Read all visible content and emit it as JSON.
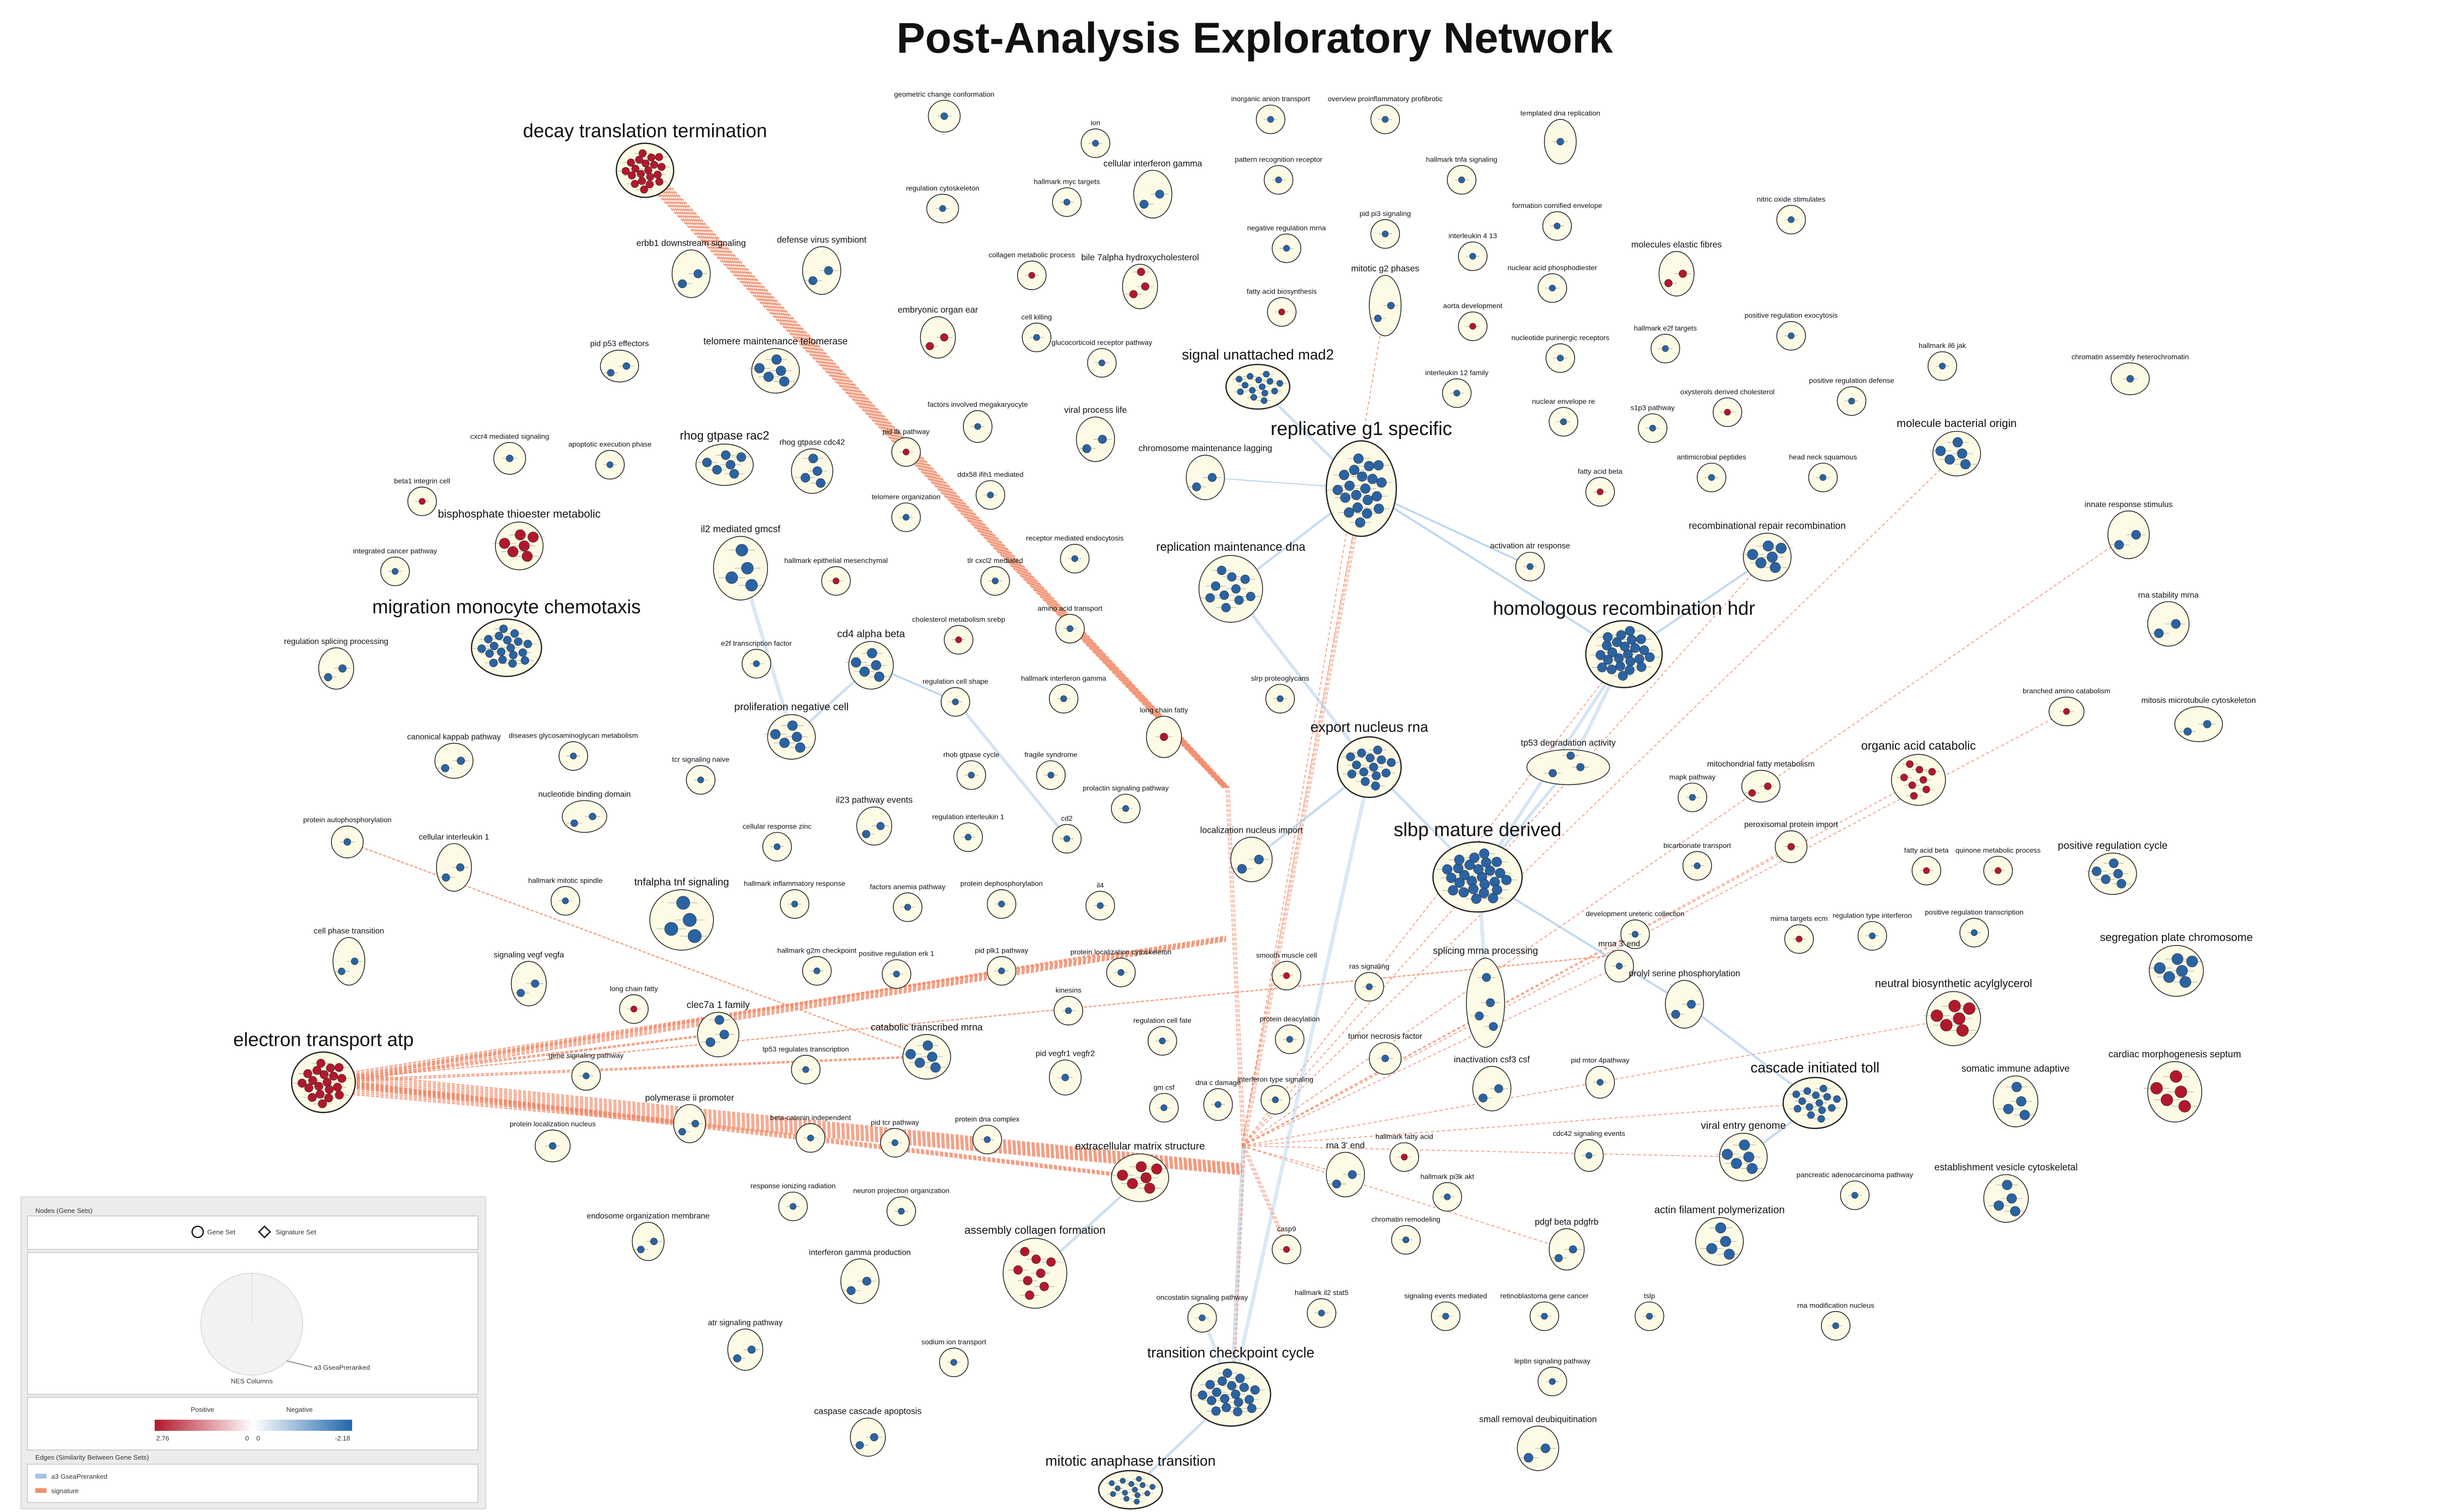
{
  "title": "Post-Analysis Exploratory Network",
  "nodes": [
    {
      "label": "decay translation termination",
      "color": "#b2182b"
    },
    {
      "label": "migration monocyte chemotaxis",
      "color": "#2a63a3"
    },
    {
      "label": "electron transport atp",
      "color": "#b2182b"
    },
    {
      "label": "replicative g1 specific",
      "color": "#2a63a3"
    },
    {
      "label": "homologous recombination hdr",
      "color": "#2a63a3"
    },
    {
      "label": "slbp mature derived",
      "color": "#2a63a3"
    },
    {
      "label": "signal unattached mad2",
      "color": "#2a63a3"
    },
    {
      "label": "export nucleus rna",
      "color": "#2a63a3"
    },
    {
      "label": "cascade initiated toll",
      "color": "#2a63a3"
    },
    {
      "label": "transition checkpoint cycle",
      "color": "#2a63a3"
    },
    {
      "label": "mitotic anaphase transition",
      "color": "#2a63a3"
    },
    {
      "label": "organic acid catabolic",
      "color": "#b2182b"
    },
    {
      "label": "molecule bacterial origin",
      "color": "#2a63a3"
    },
    {
      "label": "recombinational repair recombination",
      "color": "#2a63a3"
    },
    {
      "label": "replication maintenance dna",
      "color": "#2a63a3"
    },
    {
      "label": "rhog gtpase rac2",
      "color": "#2a63a3"
    },
    {
      "label": "rhog gtpase cdc42",
      "color": "#2a63a3"
    },
    {
      "label": "telomere maintenance telomerase",
      "color": "#2a63a3"
    },
    {
      "label": "il2 mediated gmcsf",
      "color": "#2a63a3"
    },
    {
      "label": "bisphosphate thioester metabolic",
      "color": "#b2182b"
    },
    {
      "label": "cd4 alpha beta",
      "color": "#2a63a3"
    },
    {
      "label": "proliferation negative cell",
      "color": "#2a63a3"
    },
    {
      "label": "tnfalpha tnf signaling",
      "color": "#2a63a3"
    },
    {
      "label": "catabolic transcribed mrna",
      "color": "#2a63a3"
    },
    {
      "label": "extracellular matrix structure",
      "color": "#b2182b"
    },
    {
      "label": "assembly collagen formation",
      "color": "#b2182b"
    },
    {
      "label": "neutral biosynthetic acylglycerol",
      "color": "#b2182b"
    },
    {
      "label": "segregation plate chromosome",
      "color": "#2a63a3"
    },
    {
      "label": "positive regulation cycle",
      "color": "#2a63a3"
    },
    {
      "label": "cardiac morphogenesis septum",
      "color": "#b2182b"
    },
    {
      "label": "somatic immune adaptive",
      "color": "#2a63a3"
    },
    {
      "label": "establishment vesicle cytoskeletal",
      "color": "#2a63a3"
    },
    {
      "label": "viral entry genome",
      "color": "#2a63a3"
    },
    {
      "label": "actin filament polymerization",
      "color": "#2a63a3"
    },
    {
      "label": "splicing mrna processing",
      "color": "#2a63a3"
    },
    {
      "label": "clec7a 1 family",
      "color": "#2a63a3"
    },
    {
      "label": "innate response stimulus",
      "color": "#2a63a3"
    },
    {
      "label": "rna stability mrna",
      "color": "#2a63a3"
    },
    {
      "label": "mitochondrial fatty metabolism",
      "color": "#b2182b"
    },
    {
      "label": "geometric change conformation",
      "color": "#2a63a3"
    },
    {
      "label": "ion",
      "color": "#2a63a3"
    },
    {
      "label": "inorganic anion transport",
      "color": "#2a63a3"
    },
    {
      "label": "overview proinflammatory profibrotic",
      "color": "#2a63a3"
    },
    {
      "label": "templated dna replication",
      "color": "#2a63a3"
    },
    {
      "label": "cellular interferon gamma",
      "color": "#2a63a3"
    },
    {
      "label": "regulation cytoskeleton",
      "color": "#2a63a3"
    },
    {
      "label": "hallmark myc targets",
      "color": "#2a63a3"
    },
    {
      "label": "pattern recognition receptor",
      "color": "#2a63a3"
    },
    {
      "label": "hallmark tnfa signaling",
      "color": "#2a63a3"
    },
    {
      "label": "nitric oxide stimulates",
      "color": "#2a63a3"
    },
    {
      "label": "formation cornified envelope",
      "color": "#2a63a3"
    },
    {
      "label": "pid pi3 signaling",
      "color": "#2a63a3"
    },
    {
      "label": "negative regulation mrna",
      "color": "#2a63a3"
    },
    {
      "label": "interleukin 4 13",
      "color": "#2a63a3"
    },
    {
      "label": "erbb1 downstream signaling",
      "color": "#2a63a3"
    },
    {
      "label": "defense virus symbiont",
      "color": "#2a63a3"
    },
    {
      "label": "collagen metabolic process",
      "color": "#b2182b"
    },
    {
      "label": "bile 7alpha hydroxycholesterol",
      "color": "#b2182b"
    },
    {
      "label": "nuclear acid phosphodiester",
      "color": "#2a63a3"
    },
    {
      "label": "molecules elastic fibres",
      "color": "#b2182b"
    },
    {
      "label": "mitotic g2 phases",
      "color": "#2a63a3"
    },
    {
      "label": "fatty acid biosynthesis",
      "color": "#b2182b"
    },
    {
      "label": "cell killing",
      "color": "#2a63a3"
    },
    {
      "label": "aorta development",
      "color": "#b2182b"
    },
    {
      "label": "hallmark e2f targets",
      "color": "#2a63a3"
    },
    {
      "label": "positive regulation exocytosis",
      "color": "#2a63a3"
    },
    {
      "label": "embryonic organ ear",
      "color": "#b2182b"
    },
    {
      "label": "glucocorticoid receptor pathway",
      "color": "#2a63a3"
    },
    {
      "label": "nucleotide purinergic receptors",
      "color": "#2a63a3"
    },
    {
      "label": "hallmark il6 jak",
      "color": "#2a63a3"
    },
    {
      "label": "chromatin assembly heterochromatin",
      "color": "#2a63a3"
    },
    {
      "label": "pid p53 effectors",
      "color": "#2a63a3"
    },
    {
      "label": "interleukin 12 family",
      "color": "#2a63a3"
    },
    {
      "label": "oxysterols derived cholesterol",
      "color": "#b2182b"
    },
    {
      "label": "positive regulation defense",
      "color": "#2a63a3"
    },
    {
      "label": "factors involved megakaryocyte",
      "color": "#2a63a3"
    },
    {
      "label": "viral process life",
      "color": "#2a63a3"
    },
    {
      "label": "nuclear envelope re",
      "color": "#2a63a3"
    },
    {
      "label": "s1p3 pathway",
      "color": "#2a63a3"
    },
    {
      "label": "cxcr4 mediated signaling",
      "color": "#2a63a3"
    },
    {
      "label": "apoptotic execution phase",
      "color": "#2a63a3"
    },
    {
      "label": "pid ilk pathway",
      "color": "#b2182b"
    },
    {
      "label": "chromosome maintenance lagging",
      "color": "#2a63a3"
    },
    {
      "label": "antimicrobial peptides",
      "color": "#2a63a3"
    },
    {
      "label": "head neck squamous",
      "color": "#2a63a3"
    },
    {
      "label": "beta1 integrin cell",
      "color": "#b2182b"
    },
    {
      "label": "ddx58 ifih1 mediated",
      "color": "#2a63a3"
    },
    {
      "label": "telomere organization",
      "color": "#2a63a3"
    },
    {
      "label": "fatty acid beta",
      "color": "#b2182b"
    },
    {
      "label": "integrated cancer pathway",
      "color": "#2a63a3"
    },
    {
      "label": "receptor mediated endocytosis",
      "color": "#2a63a3"
    },
    {
      "label": "hallmark epithelial mesenchymal",
      "color": "#b2182b"
    },
    {
      "label": "tlr cxcl2 mediated",
      "color": "#2a63a3"
    },
    {
      "label": "activation atr response",
      "color": "#2a63a3"
    },
    {
      "label": "cholesterol metabolism srebp",
      "color": "#b2182b"
    },
    {
      "label": "amino acid transport",
      "color": "#2a63a3"
    },
    {
      "label": "regulation splicing processing",
      "color": "#2a63a3"
    },
    {
      "label": "e2f transcription factor",
      "color": "#2a63a3"
    },
    {
      "label": "regulation cell shape",
      "color": "#2a63a3"
    },
    {
      "label": "hallmark interferon gamma",
      "color": "#2a63a3"
    },
    {
      "label": "slrp proteoglycans",
      "color": "#2a63a3"
    },
    {
      "label": "long chain fatty",
      "color": "#b2182b"
    },
    {
      "label": "branched amino catabolism",
      "color": "#b2182b"
    },
    {
      "label": "mitosis microtubule cytoskeleton",
      "color": "#2a63a3"
    },
    {
      "label": "canonical kappab pathway",
      "color": "#2a63a3"
    },
    {
      "label": "diseases glycosaminoglycan metabolism",
      "color": "#2a63a3"
    },
    {
      "label": "tcr signaling naive",
      "color": "#2a63a3"
    },
    {
      "label": "rhob gtpase cycle",
      "color": "#2a63a3"
    },
    {
      "label": "fragile syndrome",
      "color": "#2a63a3"
    },
    {
      "label": "tp53 degradation activity",
      "color": "#2a63a3"
    },
    {
      "label": "nucleotide binding domain",
      "color": "#2a63a3"
    },
    {
      "label": "prolactin signaling pathway",
      "color": "#2a63a3"
    },
    {
      "label": "mapk pathway",
      "color": "#2a63a3"
    },
    {
      "label": "protein autophosphorylation",
      "color": "#2a63a3"
    },
    {
      "label": "il23 pathway events",
      "color": "#2a63a3"
    },
    {
      "label": "peroxisomal protein import",
      "color": "#b2182b"
    },
    {
      "label": "cellular response zinc",
      "color": "#2a63a3"
    },
    {
      "label": "regulation interleukin 1",
      "color": "#2a63a3"
    },
    {
      "label": "cd2",
      "color": "#2a63a3"
    },
    {
      "label": "localization nucleus import",
      "color": "#2a63a3"
    },
    {
      "label": "bicarbonate transport",
      "color": "#2a63a3"
    },
    {
      "label": "cellular interleukin 1",
      "color": "#2a63a3"
    },
    {
      "label": "fatty acid beta",
      "color": "#b2182b"
    },
    {
      "label": "quinone metabolic process",
      "color": "#b2182b"
    },
    {
      "label": "hallmark mitotic spindle",
      "color": "#2a63a3"
    },
    {
      "label": "hallmark inflammatory response",
      "color": "#2a63a3"
    },
    {
      "label": "factors anemia pathway",
      "color": "#2a63a3"
    },
    {
      "label": "protein dephosphorylation",
      "color": "#2a63a3"
    },
    {
      "label": "il4",
      "color": "#2a63a3"
    },
    {
      "label": "development ureteric collection",
      "color": "#2a63a3"
    },
    {
      "label": "mirna targets ecm",
      "color": "#b2182b"
    },
    {
      "label": "regulation type interferon",
      "color": "#2a63a3"
    },
    {
      "label": "positive regulation transcription",
      "color": "#2a63a3"
    },
    {
      "label": "cell phase transition",
      "color": "#2a63a3"
    },
    {
      "label": "signaling vegf vegfa",
      "color": "#2a63a3"
    },
    {
      "label": "hallmark g2m checkpoint",
      "color": "#2a63a3"
    },
    {
      "label": "positive regulation erk 1",
      "color": "#2a63a3"
    },
    {
      "label": "pid plk1 pathway",
      "color": "#2a63a3"
    },
    {
      "label": "protein localization cytoskeleton",
      "color": "#2a63a3"
    },
    {
      "label": "smooth muscle cell",
      "color": "#b2182b"
    },
    {
      "label": "ras signaling",
      "color": "#2a63a3"
    },
    {
      "label": "mrna 3' end",
      "color": "#2a63a3"
    },
    {
      "label": "prolyl serine phosphorylation",
      "color": "#2a63a3"
    },
    {
      "label": "long chain fatty",
      "color": "#b2182b"
    },
    {
      "label": "kinesins",
      "color": "#2a63a3"
    },
    {
      "label": "regulation cell fate",
      "color": "#2a63a3"
    },
    {
      "label": "protein deacylation",
      "color": "#2a63a3"
    },
    {
      "label": "tumor necrosis factor",
      "color": "#2a63a3"
    },
    {
      "label": "tp53 regulates transcription",
      "color": "#2a63a3"
    },
    {
      "label": "pid vegfr1 vegfr2",
      "color": "#2a63a3"
    },
    {
      "label": "inactivation csf3 csf",
      "color": "#2a63a3"
    },
    {
      "label": "pid mtor 4pathway",
      "color": "#2a63a3"
    },
    {
      "label": "gene signaling pathway",
      "color": "#2a63a3"
    },
    {
      "label": "dna c damage",
      "color": "#2a63a3"
    },
    {
      "label": "interferon type signaling",
      "color": "#2a63a3"
    },
    {
      "label": "gm csf",
      "color": "#2a63a3"
    },
    {
      "label": "polymerase ii promoter",
      "color": "#2a63a3"
    },
    {
      "label": "protein localization nucleus",
      "color": "#2a63a3"
    },
    {
      "label": "beta-catenin independent",
      "color": "#2a63a3"
    },
    {
      "label": "pid tcr pathway",
      "color": "#2a63a3"
    },
    {
      "label": "protein dna complex",
      "color": "#2a63a3"
    },
    {
      "label": "rna 3' end",
      "color": "#2a63a3"
    },
    {
      "label": "hallmark fatty acid",
      "color": "#b2182b"
    },
    {
      "label": "cdc42 signaling events",
      "color": "#2a63a3"
    },
    {
      "label": "hallmark pi3k akt",
      "color": "#2a63a3"
    },
    {
      "label": "pancreatic adenocarcinoma pathway",
      "color": "#2a63a3"
    },
    {
      "label": "response ionizing radiation",
      "color": "#2a63a3"
    },
    {
      "label": "neuron projection organization",
      "color": "#2a63a3"
    },
    {
      "label": "endosome organization membrane",
      "color": "#2a63a3"
    },
    {
      "label": "chromatin remodeling",
      "color": "#2a63a3"
    },
    {
      "label": "casp9",
      "color": "#b2182b"
    },
    {
      "label": "pdgf beta pdgfrb",
      "color": "#2a63a3"
    },
    {
      "label": "interferon gamma production",
      "color": "#2a63a3"
    },
    {
      "label": "hallmark il2 stat5",
      "color": "#2a63a3"
    },
    {
      "label": "signaling events mediated",
      "color": "#2a63a3"
    },
    {
      "label": "retinoblastoma gene cancer",
      "color": "#2a63a3"
    },
    {
      "label": "tslp",
      "color": "#2a63a3"
    },
    {
      "label": "rna modification nucleus",
      "color": "#2a63a3"
    },
    {
      "label": "oncostatin signaling pathway",
      "color": "#2a63a3"
    },
    {
      "label": "atr signaling pathway",
      "color": "#2a63a3"
    },
    {
      "label": "sodium ion transport",
      "color": "#2a63a3"
    },
    {
      "label": "leptin signaling pathway",
      "color": "#2a63a3"
    },
    {
      "label": "caspase cascade apoptosis",
      "color": "#2a63a3"
    },
    {
      "label": "small removal deubiquitination",
      "color": "#2a63a3"
    }
  ],
  "legend": {
    "nodes_header": "Nodes (Gene Sets)",
    "gene_set": "Gene Set",
    "signature_set": "Signature Set",
    "pie_label": "a3 GseaPreranked",
    "pie_title": "NES Columns",
    "positive": "Positive",
    "negative": "Negative",
    "scale": [
      2.76,
      0,
      0,
      -2.18
    ],
    "edges_header": "Edges (Similarity Between Gene Sets)",
    "edge_a3": "a3 GseaPreranked",
    "edge_signature": "signature"
  }
}
